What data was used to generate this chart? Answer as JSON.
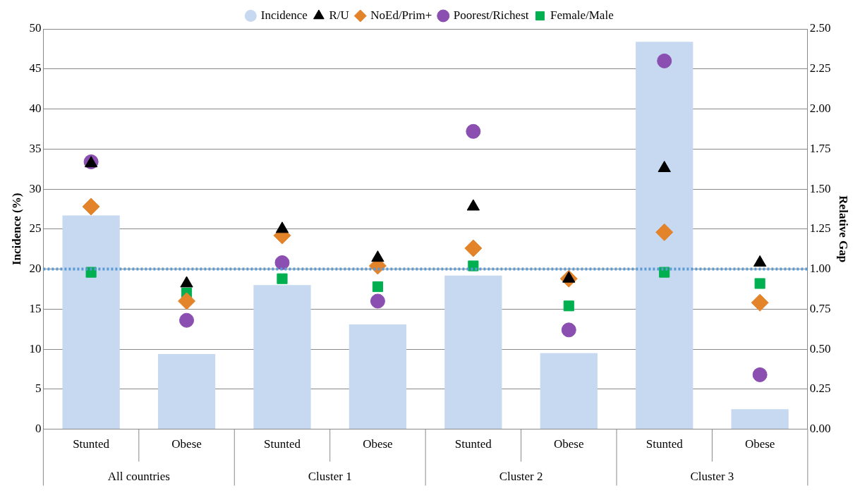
{
  "chart_data": {
    "type": "bar",
    "ylabel": "Incidence (%)",
    "y2label": "Relative Gap",
    "categories": [
      "Stunted",
      "Obese",
      "Stunted",
      "Obese",
      "Stunted",
      "Obese",
      "Stunted",
      "Obese"
    ],
    "series": [
      {
        "name": "Incidence",
        "color": "#c6d9f1",
        "values": [
          26.7,
          9.4,
          18.0,
          13.1,
          19.2,
          9.5,
          48.4,
          2.5
        ]
      },
      {
        "name": "R/U",
        "type": "scatter",
        "axis": "y2",
        "marker": "triangle",
        "color": "#000000",
        "values": [
          1.66,
          0.91,
          1.25,
          1.07,
          1.39,
          0.94,
          1.63,
          1.04
        ]
      },
      {
        "name": "NoEd/Prim+",
        "type": "scatter",
        "axis": "y2",
        "marker": "diamond",
        "color": "#e3832a",
        "values": [
          1.39,
          0.8,
          1.21,
          1.02,
          1.13,
          0.94,
          1.23,
          0.79
        ]
      },
      {
        "name": "Poorest/Richest",
        "type": "scatter",
        "axis": "y2",
        "marker": "circle",
        "color": "#8a4fb0",
        "values": [
          1.67,
          0.68,
          1.04,
          0.8,
          1.86,
          0.62,
          2.3,
          0.34
        ]
      },
      {
        "name": "Female/Male",
        "type": "scatter",
        "axis": "y2",
        "marker": "square",
        "color": "#00b050",
        "values": [
          0.98,
          0.85,
          0.94,
          0.89,
          1.02,
          0.77,
          0.98,
          0.91
        ]
      }
    ],
    "ylim": [
      0,
      50
    ],
    "yticks": [
      0,
      5,
      10,
      15,
      20,
      25,
      30,
      35,
      40,
      45,
      50
    ],
    "y2lim": [
      0,
      2.5
    ],
    "y2ticks": [
      {
        "value": 0,
        "label": "0.00"
      },
      {
        "value": 0.25,
        "label": "0.25"
      },
      {
        "value": 0.5,
        "label": "0.50"
      },
      {
        "value": 0.75,
        "label": "0.75"
      },
      {
        "value": 1,
        "label": "1.00"
      },
      {
        "value": 1.25,
        "label": "1.25"
      },
      {
        "value": 1.5,
        "label": "1.50"
      },
      {
        "value": 1.75,
        "label": "1.75"
      },
      {
        "value": 2,
        "label": "2.00"
      },
      {
        "value": 2.25,
        "label": "2.25"
      },
      {
        "value": 2.5,
        "label": "2.50"
      }
    ],
    "ref_lines": [
      {
        "axis": "y2",
        "value": 1,
        "color": "#5b9bd5",
        "line_style": "dotted"
      }
    ],
    "annotations": [
      "All countries",
      "Cluster 1",
      "Cluster 2",
      "Cluster 3"
    ],
    "grid": "y",
    "legend": "top"
  }
}
